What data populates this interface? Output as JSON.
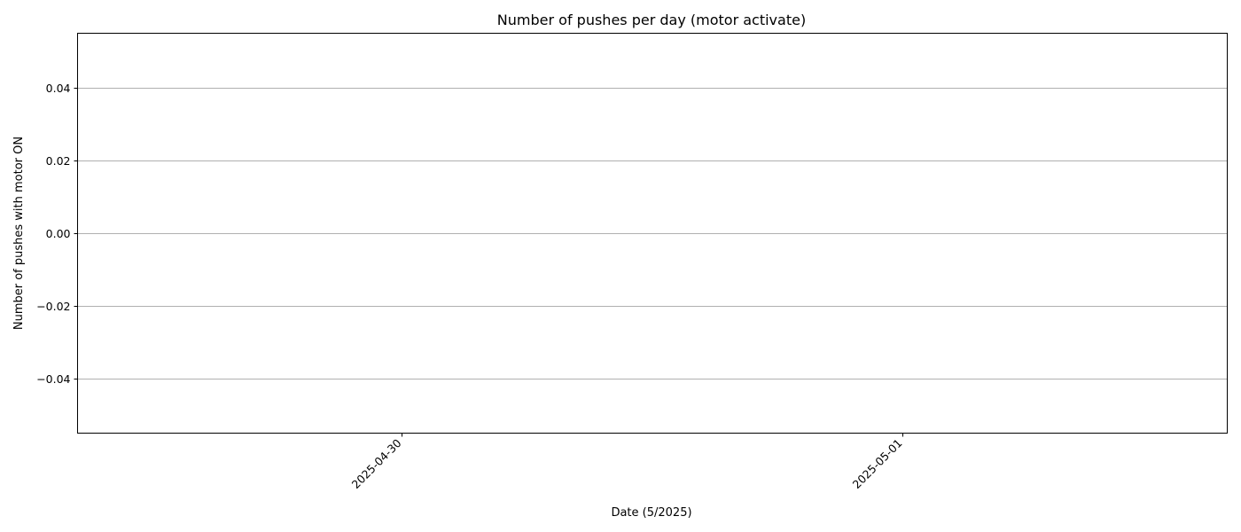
{
  "chart_data": {
    "type": "bar",
    "title": "Number of pushes per day (motor activate)",
    "xlabel": "Date (5/2025)",
    "ylabel": "Number of pushes with motor ON",
    "x_tick_labels": [
      "2025-04-30",
      "2025-05-01"
    ],
    "y_ticks": [
      0.04,
      0.02,
      0.0,
      -0.02,
      -0.04
    ],
    "y_tick_labels": [
      "0.04",
      "0.02",
      "0.00",
      "−0.02",
      "−0.04"
    ],
    "ylim": [
      -0.055,
      0.055
    ],
    "xlim": [
      "2025-04-29",
      "2025-05-01"
    ],
    "grid": "y",
    "categories": [],
    "values": []
  }
}
